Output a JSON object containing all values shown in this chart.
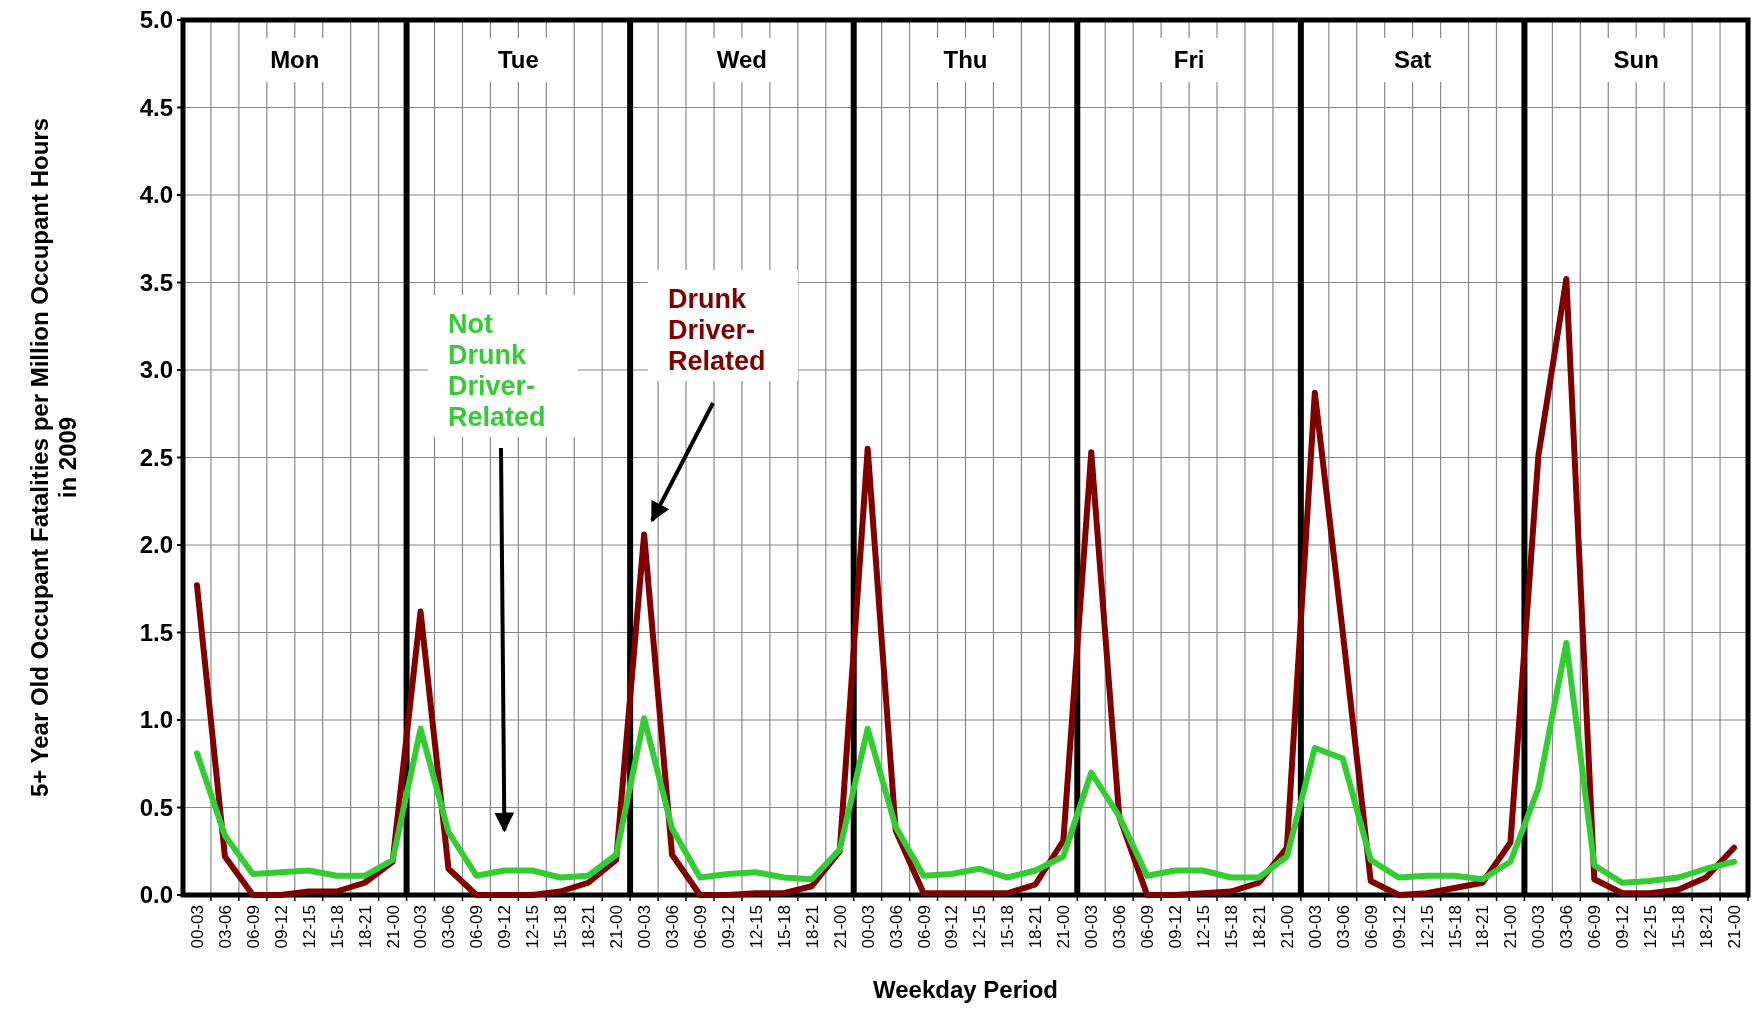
{
  "chart_data": {
    "type": "line",
    "xlabel": "Weekday Period",
    "ylabel": "5+ Year Old Occupant Fatalities per Million Occupant Hours in 2009",
    "categories": [
      "00-03",
      "03-06",
      "06-09",
      "09-12",
      "12-15",
      "15-18",
      "18-21",
      "21-00",
      "00-03",
      "03-06",
      "06-09",
      "09-12",
      "12-15",
      "15-18",
      "18-21",
      "21-00",
      "00-03",
      "03-06",
      "06-09",
      "09-12",
      "12-15",
      "15-18",
      "18-21",
      "21-00",
      "00-03",
      "03-06",
      "06-09",
      "09-12",
      "12-15",
      "15-18",
      "18-21",
      "21-00",
      "00-03",
      "03-06",
      "06-09",
      "09-12",
      "12-15",
      "15-18",
      "18-21",
      "21-00",
      "00-03",
      "03-06",
      "06-09",
      "09-12",
      "12-15",
      "15-18",
      "18-21",
      "21-00",
      "00-03",
      "03-06",
      "06-09",
      "09-12",
      "12-15",
      "15-18",
      "18-21",
      "21-00"
    ],
    "series": [
      {
        "name": "Drunk Driver-Related",
        "color": "#800000",
        "values": [
          1.77,
          0.22,
          0.0,
          0.0,
          0.02,
          0.02,
          0.07,
          0.19,
          1.62,
          0.15,
          0.0,
          0.0,
          0.0,
          0.02,
          0.07,
          0.2,
          2.06,
          0.23,
          0.0,
          0.0,
          0.01,
          0.01,
          0.05,
          0.25,
          2.55,
          0.37,
          0.01,
          0.01,
          0.01,
          0.01,
          0.06,
          0.31,
          2.53,
          0.45,
          0.0,
          0.0,
          0.01,
          0.02,
          0.07,
          0.27,
          2.87,
          1.5,
          0.08,
          0.0,
          0.01,
          0.04,
          0.07,
          0.3,
          2.51,
          3.52,
          0.09,
          0.01,
          0.01,
          0.03,
          0.1,
          0.27
        ]
      },
      {
        "name": "Not Drunk Driver-Related",
        "color": "#33cc33",
        "values": [
          0.81,
          0.34,
          0.12,
          0.13,
          0.14,
          0.11,
          0.11,
          0.2,
          0.95,
          0.36,
          0.11,
          0.14,
          0.14,
          0.1,
          0.11,
          0.23,
          1.01,
          0.38,
          0.1,
          0.12,
          0.13,
          0.1,
          0.09,
          0.26,
          0.95,
          0.39,
          0.11,
          0.12,
          0.15,
          0.1,
          0.14,
          0.22,
          0.7,
          0.45,
          0.11,
          0.14,
          0.14,
          0.1,
          0.1,
          0.22,
          0.84,
          0.78,
          0.2,
          0.1,
          0.11,
          0.11,
          0.09,
          0.19,
          0.61,
          1.44,
          0.17,
          0.07,
          0.08,
          0.1,
          0.15,
          0.19
        ]
      }
    ],
    "annotations": [
      "Mon",
      "Tue",
      "Wed",
      "Thu",
      "Fri",
      "Sat",
      "Sun"
    ],
    "ylim": [
      0,
      5
    ],
    "yticks": [
      {
        "value": 0,
        "label": "0.0"
      },
      {
        "value": 0.5,
        "label": "0.5"
      },
      {
        "value": 1,
        "label": "1.0"
      },
      {
        "value": 1.5,
        "label": "1.5"
      },
      {
        "value": 2,
        "label": "2.0"
      },
      {
        "value": 2.5,
        "label": "2.5"
      },
      {
        "value": 3,
        "label": "3.0"
      },
      {
        "value": 3.5,
        "label": "3.5"
      },
      {
        "value": 4,
        "label": "4.0"
      },
      {
        "value": 4.5,
        "label": "4.5"
      },
      {
        "value": 5,
        "label": "5.0"
      }
    ],
    "grid": true,
    "legend": false,
    "marker": "none",
    "line_style": "solid"
  }
}
